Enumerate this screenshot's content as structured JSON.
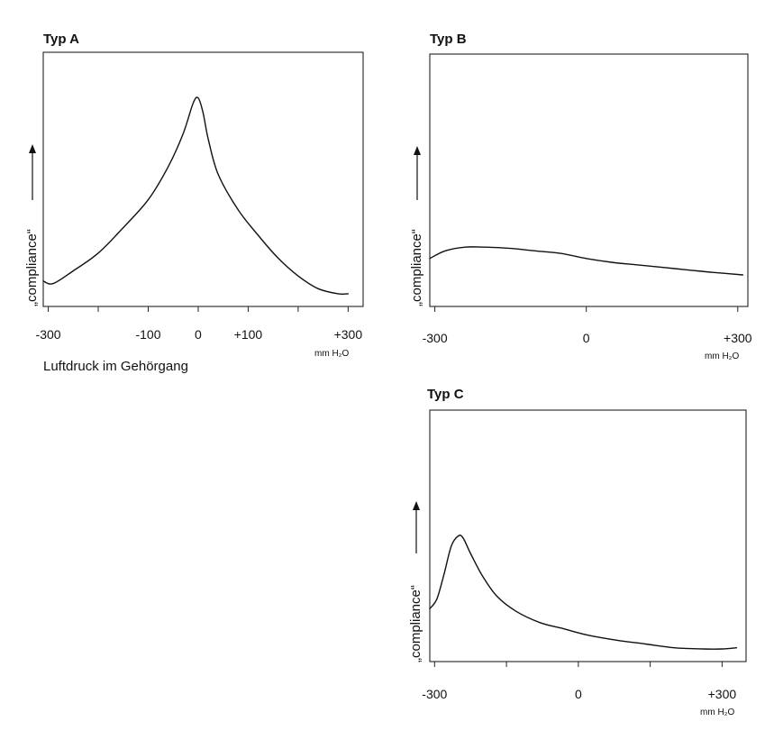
{
  "chart_data": [
    {
      "type": "line",
      "title": "Typ A",
      "ylabel": "„compliance“",
      "xlabel": "Luftdruck im Gehörgang",
      "x_unit": "mm H₂O",
      "xlim": [
        -310,
        330
      ],
      "ylim": [
        0,
        1
      ],
      "x_ticks": [
        -300,
        -200,
        -100,
        0,
        100,
        200,
        300
      ],
      "x_tick_labels": [
        {
          "x": -300,
          "label": "-300"
        },
        {
          "x": -100,
          "label": "-100"
        },
        {
          "x": 0,
          "label": "0"
        },
        {
          "x": 100,
          "label": "+100"
        },
        {
          "x": 300,
          "label": "+300"
        }
      ],
      "series": [
        {
          "x": [
            -310,
            -290,
            -250,
            -200,
            -150,
            -100,
            -60,
            -30,
            -10,
            0,
            10,
            20,
            40,
            80,
            120,
            160,
            200,
            240,
            280,
            300
          ],
          "y": [
            0.1,
            0.09,
            0.14,
            0.21,
            0.31,
            0.42,
            0.55,
            0.68,
            0.8,
            0.82,
            0.76,
            0.66,
            0.52,
            0.38,
            0.28,
            0.19,
            0.12,
            0.07,
            0.05,
            0.05
          ]
        }
      ]
    },
    {
      "type": "line",
      "title": "Typ B",
      "ylabel": "„compliance“",
      "xlabel": "",
      "x_unit": "mm H₂O",
      "xlim": [
        -310,
        320
      ],
      "ylim": [
        0,
        1
      ],
      "x_ticks": [
        -300,
        0,
        300
      ],
      "x_tick_labels": [
        {
          "x": -300,
          "label": "-300"
        },
        {
          "x": 0,
          "label": "0"
        },
        {
          "x": 300,
          "label": "+300"
        }
      ],
      "series": [
        {
          "x": [
            -310,
            -280,
            -240,
            -200,
            -150,
            -100,
            -50,
            0,
            50,
            100,
            150,
            200,
            250,
            310
          ],
          "y": [
            0.19,
            0.22,
            0.235,
            0.235,
            0.23,
            0.22,
            0.21,
            0.19,
            0.175,
            0.165,
            0.155,
            0.145,
            0.135,
            0.125
          ]
        }
      ]
    },
    {
      "type": "line",
      "title": "Typ C",
      "ylabel": "„compliance“",
      "xlabel": "",
      "x_unit": "mm H₂O",
      "xlim": [
        -310,
        350
      ],
      "ylim": [
        0,
        1
      ],
      "x_ticks": [
        -300,
        -150,
        0,
        150,
        300
      ],
      "x_tick_labels": [
        {
          "x": -300,
          "label": "-300"
        },
        {
          "x": 0,
          "label": "0"
        },
        {
          "x": 300,
          "label": "+300"
        }
      ],
      "series": [
        {
          "x": [
            -310,
            -295,
            -280,
            -265,
            -250,
            -240,
            -225,
            -200,
            -170,
            -130,
            -80,
            -30,
            20,
            80,
            140,
            200,
            260,
            300,
            330
          ],
          "y": [
            0.21,
            0.25,
            0.35,
            0.46,
            0.5,
            0.49,
            0.43,
            0.34,
            0.26,
            0.2,
            0.155,
            0.13,
            0.105,
            0.085,
            0.07,
            0.055,
            0.05,
            0.05,
            0.055
          ]
        }
      ]
    }
  ]
}
